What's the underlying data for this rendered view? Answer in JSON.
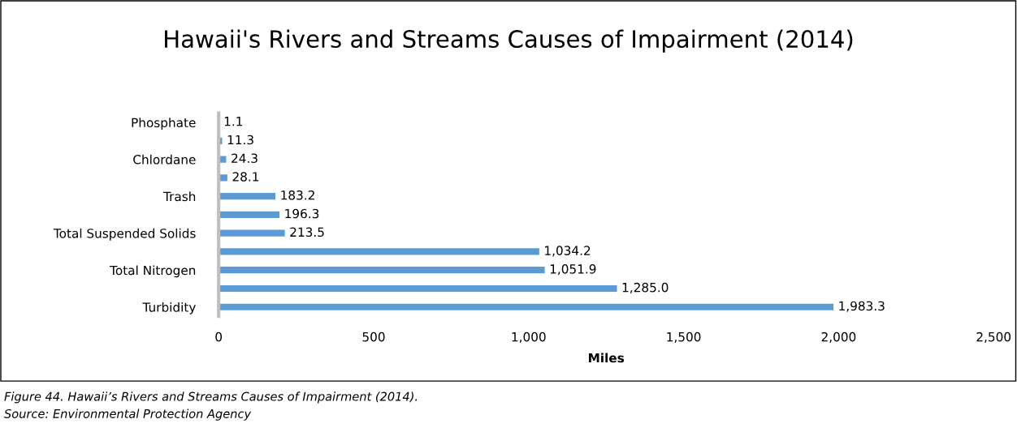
{
  "chart_data": {
    "type": "bar",
    "orientation": "horizontal",
    "title": "Hawaii's Rivers and Streams Causes of Impairment (2014)",
    "xlabel": "Miles",
    "categories": [
      "Phosphate",
      null,
      "Chlordane",
      null,
      "Trash",
      null,
      "Total Suspended Solids",
      null,
      "Total Nitrogen",
      null,
      "Turbidity"
    ],
    "values": [
      1.1,
      11.3,
      24.3,
      28.1,
      183.2,
      196.3,
      213.5,
      1034.2,
      1051.9,
      1285.0,
      1983.3
    ],
    "value_labels": [
      "1.1",
      "11.3",
      "24.3",
      "28.1",
      "183.2",
      "196.3",
      "213.5",
      "1,034.2",
      "1,051.9",
      "1,285.0",
      "1,983.3"
    ],
    "color": "#5b9bd5",
    "xlim": [
      0,
      2500
    ],
    "xticks": [
      0,
      500,
      {
        "value": 1000,
        "label": "1,000"
      },
      {
        "value": 1500,
        "label": "1,500"
      },
      {
        "value": 2000,
        "label": "2,000"
      },
      {
        "value": 2500,
        "label": "2,500"
      }
    ],
    "grid": false,
    "annotations": [
      "Figure 44. Hawaii’s Rivers and Streams Causes of Impairment (2014).",
      "Source: Environmental Protection Agency"
    ]
  }
}
